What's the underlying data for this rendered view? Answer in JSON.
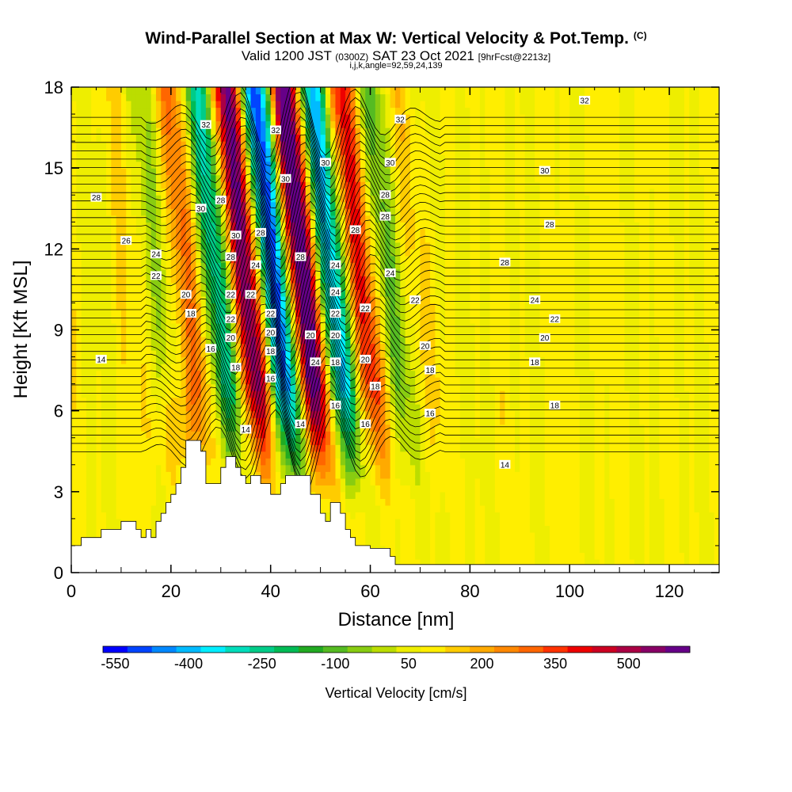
{
  "title": "Wind-Parallel Section at Max W: Vertical Velocity & Pot.Temp.",
  "title_tag": "(C)",
  "subtitle_valid": "Valid 1200 JST",
  "subtitle_utc": "(0300Z)",
  "subtitle_date": "SAT 23 Oct 2021",
  "subtitle_fcst": "[9hrFcst@2213z]",
  "subtitle_indices": "i,j,k,angle=92,59,24,139",
  "chart_data": {
    "type": "heatmap",
    "xlabel": "Distance [nm]",
    "ylabel": "Height [Kft MSL]",
    "xlim": [
      0,
      130
    ],
    "ylim": [
      0,
      18
    ],
    "x_ticks": [
      "0",
      "20",
      "40",
      "60",
      "80",
      "100",
      "120"
    ],
    "y_ticks": [
      "0",
      "3",
      "6",
      "9",
      "12",
      "15",
      "18"
    ],
    "colorbar": {
      "label": "Vertical Velocity [cm/s]",
      "tick_labels": [
        "-550",
        "-400",
        "-250",
        "-100",
        "50",
        "200",
        "350",
        "500"
      ],
      "colors": [
        "#0000ff",
        "#0044ff",
        "#0088ff",
        "#00bbff",
        "#00eeff",
        "#00ddbb",
        "#00cc88",
        "#00bb55",
        "#22aa22",
        "#55bb22",
        "#88cc11",
        "#bbdd00",
        "#eeee00",
        "#ffee00",
        "#ffcc00",
        "#ffaa00",
        "#ff8800",
        "#ff6600",
        "#ff3300",
        "#ee0000",
        "#cc0022",
        "#aa0044",
        "#880066",
        "#660088"
      ]
    },
    "contour_field": "Potential temperature (C)",
    "contour_labels": [
      {
        "text": "32",
        "x": 27,
        "y": 16.6
      },
      {
        "text": "32",
        "x": 41,
        "y": 16.4
      },
      {
        "text": "32",
        "x": 66,
        "y": 16.8
      },
      {
        "text": "32",
        "x": 103,
        "y": 17.5
      },
      {
        "text": "30",
        "x": 43,
        "y": 14.6
      },
      {
        "text": "30",
        "x": 51,
        "y": 15.2
      },
      {
        "text": "30",
        "x": 64,
        "y": 15.2
      },
      {
        "text": "30",
        "x": 95,
        "y": 14.9
      },
      {
        "text": "30",
        "x": 26,
        "y": 13.5
      },
      {
        "text": "28",
        "x": 5,
        "y": 13.9
      },
      {
        "text": "28",
        "x": 30,
        "y": 13.8
      },
      {
        "text": "28",
        "x": 63,
        "y": 14.0
      },
      {
        "text": "28",
        "x": 96,
        "y": 12.9
      },
      {
        "text": "28",
        "x": 63,
        "y": 13.2
      },
      {
        "text": "30",
        "x": 33,
        "y": 12.5
      },
      {
        "text": "28",
        "x": 38,
        "y": 12.6
      },
      {
        "text": "28",
        "x": 57,
        "y": 12.7
      },
      {
        "text": "26",
        "x": 11,
        "y": 12.3
      },
      {
        "text": "28",
        "x": 32,
        "y": 11.7
      },
      {
        "text": "28",
        "x": 46,
        "y": 11.7
      },
      {
        "text": "28",
        "x": 87,
        "y": 11.5
      },
      {
        "text": "24",
        "x": 17,
        "y": 11.8
      },
      {
        "text": "24",
        "x": 37,
        "y": 11.4
      },
      {
        "text": "24",
        "x": 53,
        "y": 11.4
      },
      {
        "text": "24",
        "x": 64,
        "y": 11.1
      },
      {
        "text": "22",
        "x": 17,
        "y": 11.0
      },
      {
        "text": "20",
        "x": 23,
        "y": 10.3
      },
      {
        "text": "22",
        "x": 32,
        "y": 10.3
      },
      {
        "text": "22",
        "x": 36,
        "y": 10.3
      },
      {
        "text": "24",
        "x": 53,
        "y": 10.4
      },
      {
        "text": "22",
        "x": 69,
        "y": 10.1
      },
      {
        "text": "24",
        "x": 93,
        "y": 10.1
      },
      {
        "text": "18",
        "x": 24,
        "y": 9.6
      },
      {
        "text": "22",
        "x": 40,
        "y": 9.6
      },
      {
        "text": "22",
        "x": 53,
        "y": 9.6
      },
      {
        "text": "22",
        "x": 59,
        "y": 9.8
      },
      {
        "text": "22",
        "x": 97,
        "y": 9.4
      },
      {
        "text": "22",
        "x": 32,
        "y": 9.4
      },
      {
        "text": "20",
        "x": 32,
        "y": 8.7
      },
      {
        "text": "20",
        "x": 40,
        "y": 8.9
      },
      {
        "text": "20",
        "x": 48,
        "y": 8.8
      },
      {
        "text": "20",
        "x": 53,
        "y": 8.8
      },
      {
        "text": "20",
        "x": 95,
        "y": 8.7
      },
      {
        "text": "20",
        "x": 71,
        "y": 8.4
      },
      {
        "text": "16",
        "x": 28,
        "y": 8.3
      },
      {
        "text": "18",
        "x": 40,
        "y": 8.2
      },
      {
        "text": "18",
        "x": 33,
        "y": 7.6
      },
      {
        "text": "24",
        "x": 49,
        "y": 7.8
      },
      {
        "text": "18",
        "x": 53,
        "y": 7.8
      },
      {
        "text": "20",
        "x": 59,
        "y": 7.9
      },
      {
        "text": "18",
        "x": 93,
        "y": 7.8
      },
      {
        "text": "18",
        "x": 72,
        "y": 7.5
      },
      {
        "text": "16",
        "x": 40,
        "y": 7.2
      },
      {
        "text": "18",
        "x": 61,
        "y": 6.9
      },
      {
        "text": "14",
        "x": 6,
        "y": 7.9
      },
      {
        "text": "16",
        "x": 53,
        "y": 6.2
      },
      {
        "text": "18",
        "x": 97,
        "y": 6.2
      },
      {
        "text": "16",
        "x": 72,
        "y": 5.9
      },
      {
        "text": "14",
        "x": 35,
        "y": 5.3
      },
      {
        "text": "14",
        "x": 46,
        "y": 5.5
      },
      {
        "text": "16",
        "x": 59,
        "y": 5.5
      },
      {
        "text": "14",
        "x": 87,
        "y": 4.0
      }
    ],
    "terrain_top_kft": [
      [
        0,
        1.0
      ],
      [
        2,
        1.0
      ],
      [
        2,
        1.3
      ],
      [
        6,
        1.3
      ],
      [
        6,
        1.6
      ],
      [
        10,
        1.6
      ],
      [
        10,
        1.9
      ],
      [
        13,
        1.9
      ],
      [
        13,
        1.6
      ],
      [
        14,
        1.6
      ],
      [
        14,
        1.3
      ],
      [
        15,
        1.3
      ],
      [
        15,
        1.6
      ],
      [
        16,
        1.6
      ],
      [
        16,
        1.3
      ],
      [
        17,
        1.3
      ],
      [
        17,
        1.9
      ],
      [
        18,
        1.9
      ],
      [
        18,
        2.2
      ],
      [
        19,
        2.2
      ],
      [
        19,
        2.6
      ],
      [
        20,
        2.6
      ],
      [
        20,
        2.9
      ],
      [
        21,
        2.9
      ],
      [
        21,
        3.3
      ],
      [
        22,
        3.3
      ],
      [
        22,
        3.9
      ],
      [
        23,
        3.9
      ],
      [
        23,
        4.9
      ],
      [
        26,
        4.9
      ],
      [
        26,
        4.5
      ],
      [
        27,
        4.5
      ],
      [
        27,
        3.3
      ],
      [
        30,
        3.3
      ],
      [
        30,
        3.9
      ],
      [
        31,
        3.9
      ],
      [
        31,
        4.3
      ],
      [
        33,
        4.3
      ],
      [
        33,
        3.9
      ],
      [
        34,
        3.9
      ],
      [
        34,
        3.6
      ],
      [
        35,
        3.6
      ],
      [
        35,
        3.3
      ],
      [
        36,
        3.3
      ],
      [
        36,
        3.6
      ],
      [
        38,
        3.6
      ],
      [
        38,
        3.3
      ],
      [
        40,
        3.3
      ],
      [
        40,
        2.9
      ],
      [
        42,
        2.9
      ],
      [
        42,
        3.3
      ],
      [
        43,
        3.3
      ],
      [
        43,
        3.6
      ],
      [
        48,
        3.6
      ],
      [
        48,
        2.9
      ],
      [
        50,
        2.9
      ],
      [
        50,
        2.2
      ],
      [
        51,
        2.2
      ],
      [
        51,
        1.9
      ],
      [
        52,
        1.9
      ],
      [
        52,
        2.6
      ],
      [
        54,
        2.6
      ],
      [
        54,
        2.2
      ],
      [
        55,
        2.2
      ],
      [
        55,
        1.6
      ],
      [
        56,
        1.6
      ],
      [
        56,
        1.3
      ],
      [
        57,
        1.3
      ],
      [
        57,
        1.0
      ],
      [
        60,
        1.0
      ],
      [
        60,
        0.9
      ],
      [
        64,
        0.9
      ],
      [
        64,
        0.6
      ],
      [
        65,
        0.6
      ],
      [
        65,
        0.3
      ],
      [
        130,
        0.3
      ]
    ]
  }
}
